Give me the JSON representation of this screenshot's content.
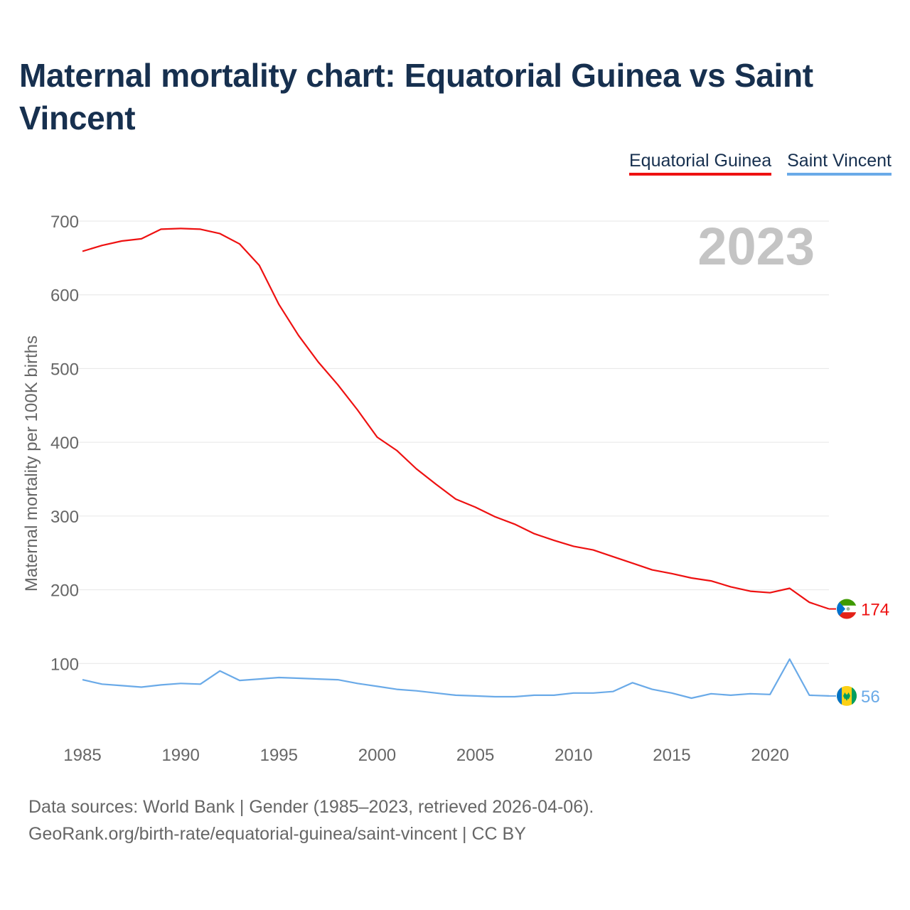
{
  "title": "Maternal mortality chart: Equatorial Guinea vs Saint Vincent",
  "legend": {
    "eg": "Equatorial Guinea",
    "sv": "Saint Vincent"
  },
  "source": {
    "line1": "Data sources: World Bank | Gender (1985–2023, retrieved 2026-04-06).",
    "line2": "GeoRank.org/birth-rate/equatorial-guinea/saint-vincent | CC BY"
  },
  "colors": {
    "eg": "#ee1111",
    "sv": "#6aaae8",
    "grid": "#e6e6e6",
    "watermark": "#c4c4c4"
  },
  "chart_data": {
    "type": "line",
    "ylabel": "Maternal mortality per 100K births",
    "xlabel": "",
    "year_watermark": "2023",
    "ylim": [
      0,
      700
    ],
    "xlim": [
      1985,
      2023
    ],
    "yticks": [
      100,
      200,
      300,
      400,
      500,
      600,
      700
    ],
    "xticks": [
      1985,
      1990,
      1995,
      2000,
      2005,
      2010,
      2015,
      2020
    ],
    "x": [
      1985,
      1986,
      1987,
      1988,
      1989,
      1990,
      1991,
      1992,
      1993,
      1994,
      1995,
      1996,
      1997,
      1998,
      1999,
      2000,
      2001,
      2002,
      2003,
      2004,
      2005,
      2006,
      2007,
      2008,
      2009,
      2010,
      2011,
      2012,
      2013,
      2014,
      2015,
      2016,
      2017,
      2018,
      2019,
      2020,
      2021,
      2022,
      2023
    ],
    "series": [
      {
        "name": "Equatorial Guinea",
        "key": "eg",
        "end_label": "174",
        "values": [
          659,
          667,
          673,
          676,
          689,
          690,
          689,
          683,
          669,
          640,
          587,
          545,
          509,
          478,
          444,
          407,
          389,
          364,
          343,
          323,
          312,
          299,
          289,
          276,
          267,
          259,
          254,
          245,
          236,
          227,
          222,
          216,
          212,
          204,
          198,
          196,
          202,
          183,
          174
        ]
      },
      {
        "name": "Saint Vincent",
        "key": "sv",
        "end_label": "56",
        "values": [
          78,
          72,
          70,
          68,
          71,
          73,
          72,
          90,
          77,
          79,
          81,
          80,
          79,
          78,
          73,
          69,
          65,
          63,
          60,
          57,
          56,
          55,
          55,
          57,
          57,
          60,
          60,
          62,
          74,
          65,
          60,
          53,
          59,
          57,
          59,
          58,
          106,
          57,
          56
        ]
      }
    ]
  }
}
